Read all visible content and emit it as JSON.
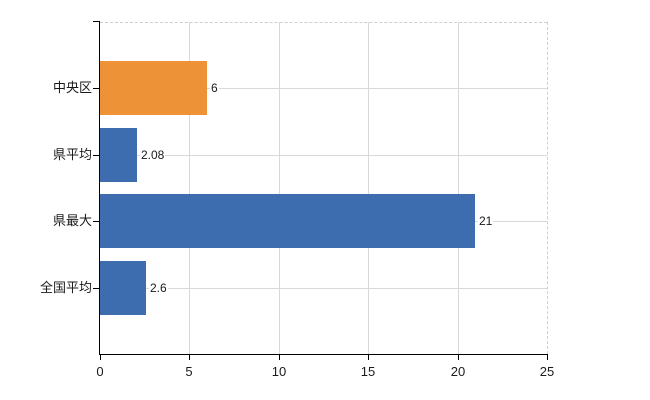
{
  "chart_data": {
    "type": "bar",
    "orientation": "horizontal",
    "title": "",
    "xlabel": "",
    "ylabel": "",
    "categories": [
      "中央区",
      "県平均",
      "県最大",
      "全国平均"
    ],
    "values": [
      6,
      2.08,
      21,
      2.6
    ],
    "value_labels": [
      "6",
      "2.08",
      "21",
      "2.6"
    ],
    "bar_colors": [
      "#ee9238",
      "#3d6daf",
      "#3d6daf",
      "#3d6daf"
    ],
    "xlim": [
      0,
      25
    ],
    "xticks": [
      0,
      5,
      10,
      15,
      20,
      25
    ],
    "xtick_labels": [
      "0",
      "5",
      "10",
      "15",
      "20",
      "25"
    ],
    "grid": true,
    "legend": false
  },
  "style": {
    "background": "#ffffff",
    "axis_color": "#000000",
    "grid_color": "#d9d9d9",
    "boundary_dash_color": "#cfcfcf",
    "text_color": "#1a1a1a",
    "accent_orange": "#ee9238",
    "accent_blue": "#3d6daf"
  }
}
